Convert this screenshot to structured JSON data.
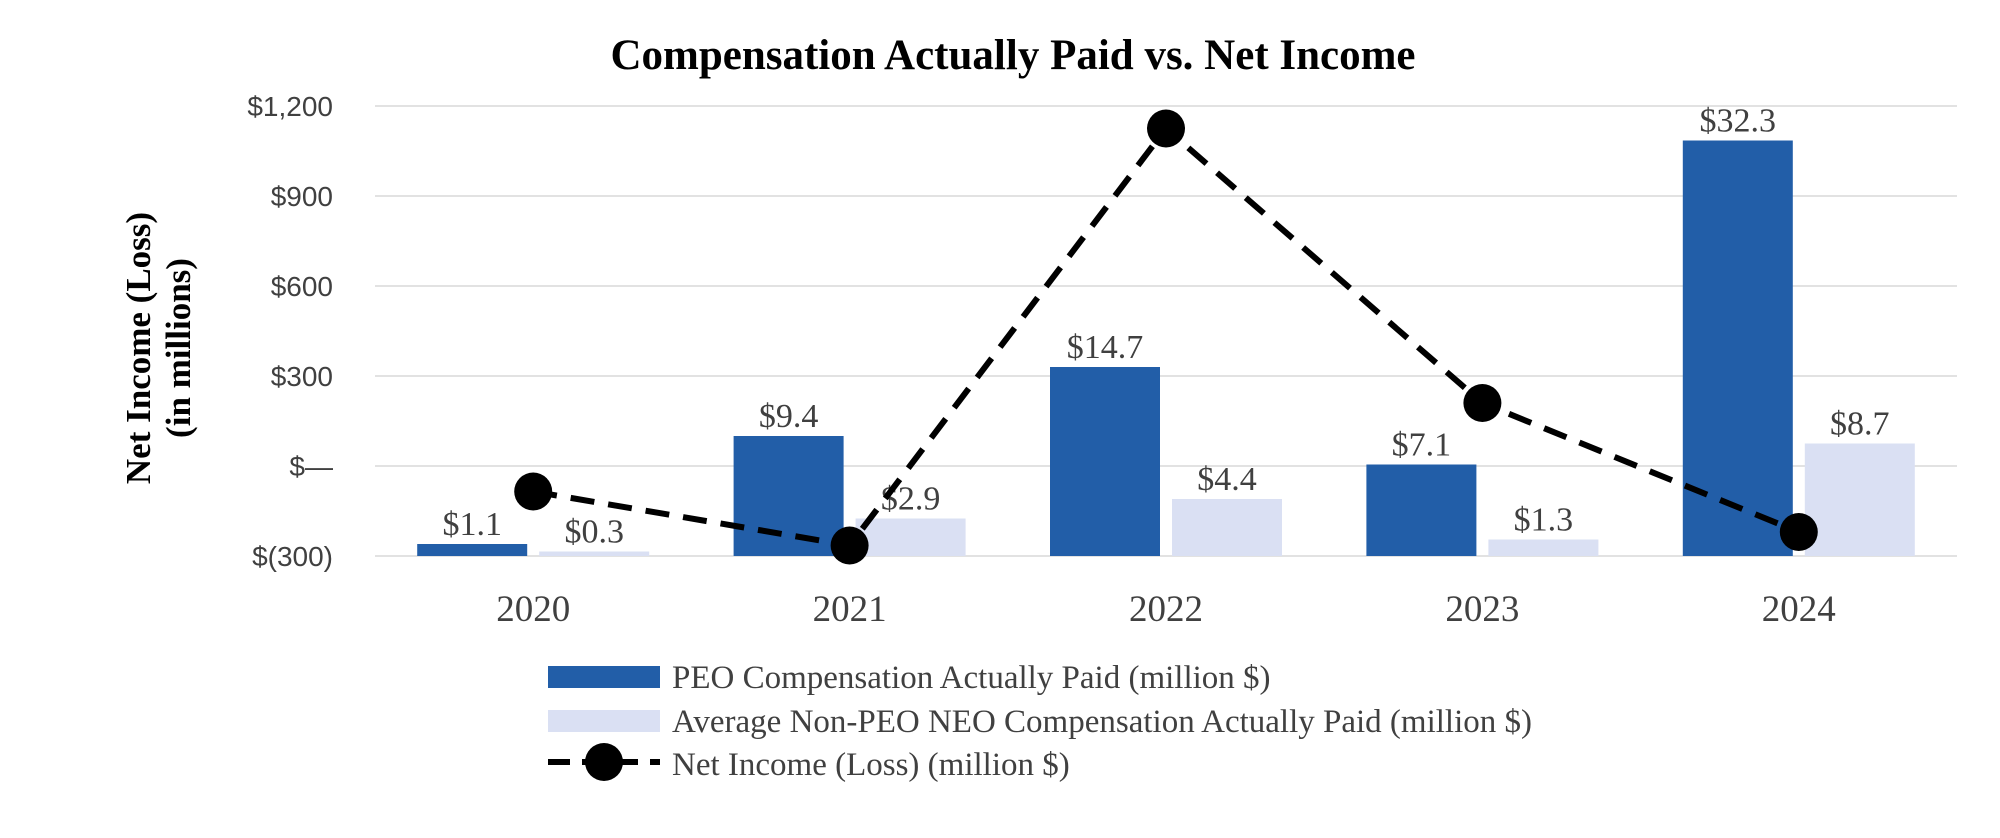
{
  "chart_data": {
    "type": "bar",
    "title": "Compensation Actually Paid vs. Net Income",
    "ylabel_line1": "Net Income (Loss)",
    "ylabel_line2": "(in millions)",
    "xlabel": "",
    "categories": [
      "2020",
      "2021",
      "2022",
      "2023",
      "2024"
    ],
    "ylim": [
      -300,
      1200
    ],
    "yticks": [
      -300,
      0,
      300,
      600,
      900,
      1200
    ],
    "ytick_labels": [
      "$(300)",
      "$—",
      "$300",
      "$600",
      "$900",
      "$1,200"
    ],
    "grid": true,
    "legend_position": "bottom",
    "series": [
      {
        "name": "PEO Compensation Actually Paid (million $)",
        "kind": "bar",
        "color": "#225ea8",
        "values": [
          1.1,
          9.4,
          14.7,
          7.1,
          32.3
        ],
        "display_values": [
          -260,
          100,
          330,
          5,
          1085
        ],
        "labels": [
          "$1.1",
          "$9.4",
          "$14.7",
          "$7.1",
          "$32.3"
        ]
      },
      {
        "name": "Average Non-PEO NEO Compensation Actually Paid (million $)",
        "kind": "bar",
        "color": "#dae0f3",
        "values": [
          0.3,
          2.9,
          4.4,
          1.3,
          8.7
        ],
        "display_values": [
          -285,
          -175,
          -110,
          -245,
          75
        ],
        "labels": [
          "$0.3",
          "$2.9",
          "$4.4",
          "$1.3",
          "$8.7"
        ]
      },
      {
        "name": "Net Income (Loss) (million $)",
        "kind": "line",
        "color": "#000000",
        "values": [
          -85,
          -265,
          1125,
          210,
          -220
        ]
      }
    ]
  }
}
